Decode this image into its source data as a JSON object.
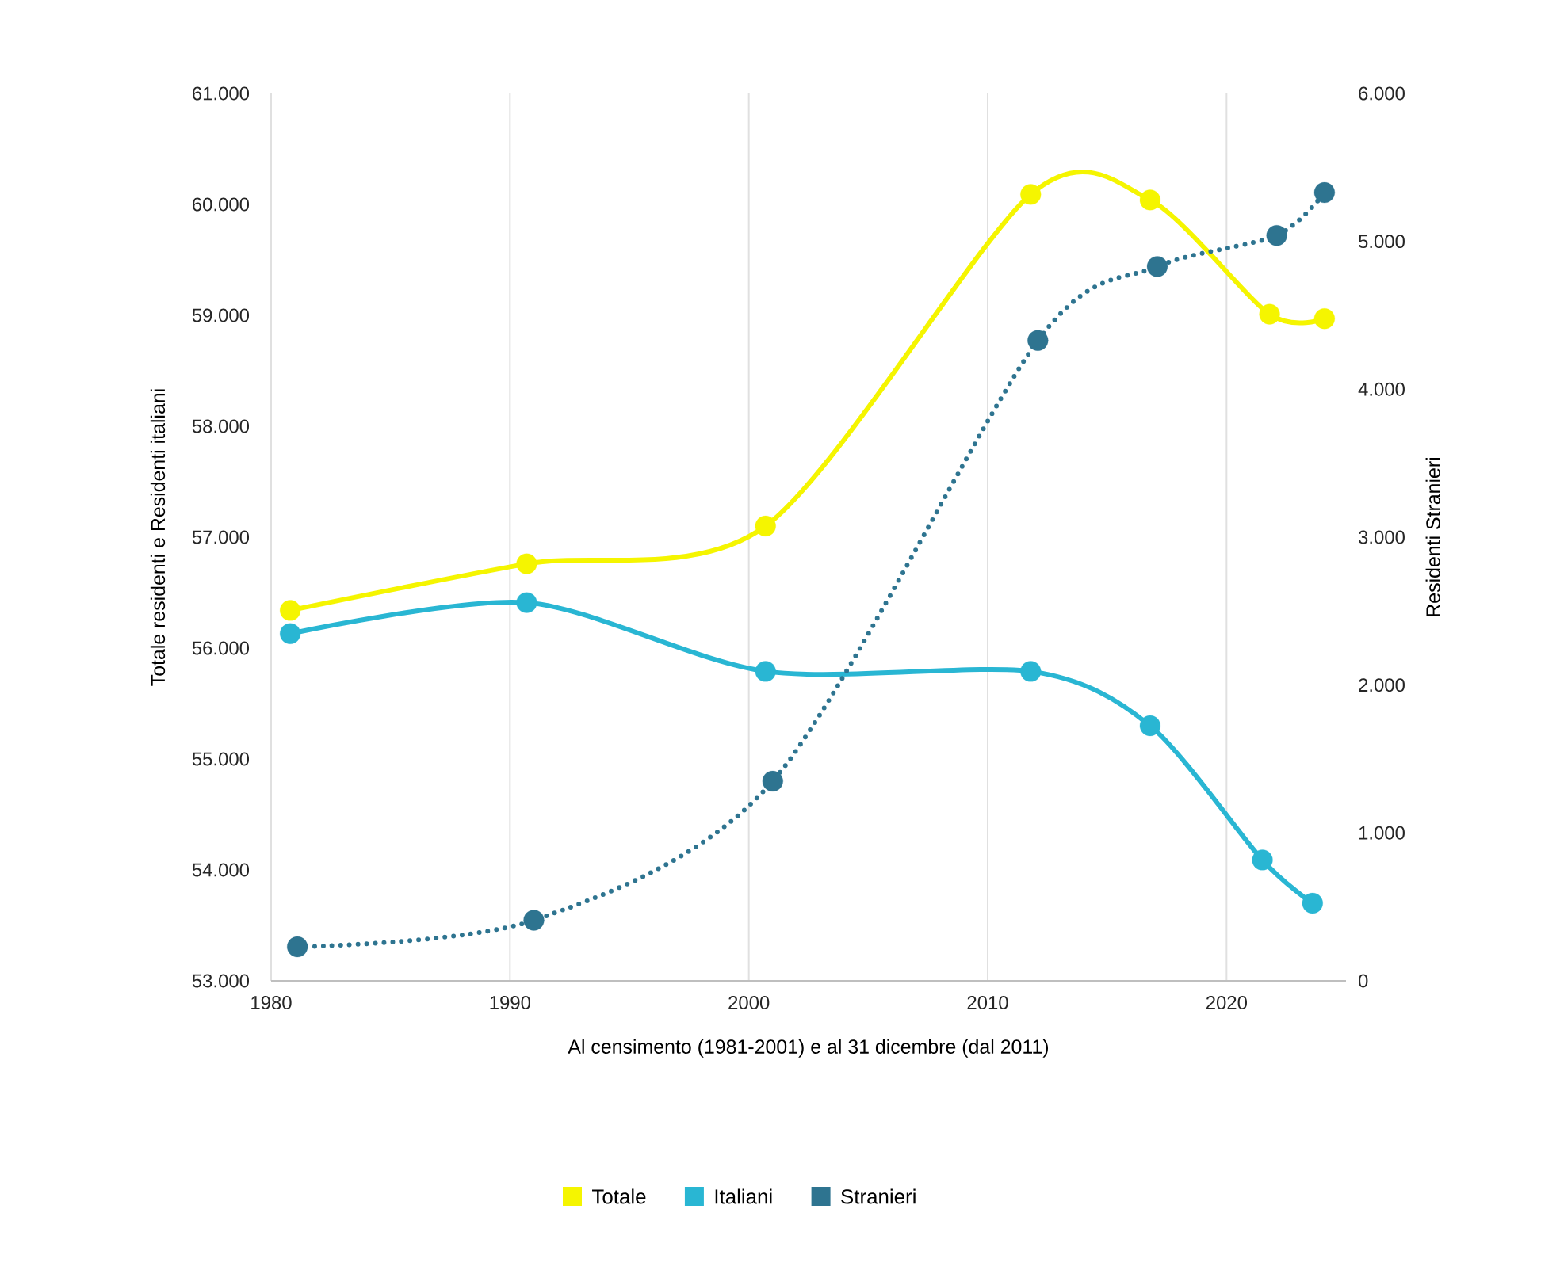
{
  "chart_data": {
    "type": "line",
    "xlabel": "Al censimento (1981-2001) e al 31 dicembre (dal 2011)",
    "ylabel": "Totale residenti e Residenti italiani",
    "y2label": "Residenti Stranieri",
    "xlim": [
      1980,
      2025
    ],
    "xticks": [
      1980,
      1990,
      2000,
      2010,
      2020
    ],
    "ylim": [
      53000,
      61000
    ],
    "yticks": [
      {
        "value": 53000,
        "label": "53.000"
      },
      {
        "value": 54000,
        "label": "54.000"
      },
      {
        "value": 55000,
        "label": "55.000"
      },
      {
        "value": 56000,
        "label": "56.000"
      },
      {
        "value": 57000,
        "label": "57.000"
      },
      {
        "value": 58000,
        "label": "58.000"
      },
      {
        "value": 59000,
        "label": "59.000"
      },
      {
        "value": 60000,
        "label": "60.000"
      },
      {
        "value": 61000,
        "label": "61.000"
      }
    ],
    "y2lim": [
      0,
      6000
    ],
    "y2ticks": [
      0,
      {
        "value": 1000,
        "label": "1.000"
      },
      {
        "value": 2000,
        "label": "2.000"
      },
      {
        "value": 3000,
        "label": "3.000"
      },
      {
        "value": 4000,
        "label": "4.000"
      },
      {
        "value": 5000,
        "label": "5.000"
      },
      {
        "value": 6000,
        "label": "6.000"
      }
    ],
    "grid": "x",
    "legend": "bottom",
    "marker": "circle",
    "series": [
      {
        "name": "Totale",
        "color": "#f5f500",
        "x": [
          1980.8,
          1990.7,
          2000.7,
          2011.8,
          2016.8,
          2021.8,
          2024.1
        ],
        "values": [
          56340,
          56760,
          57100,
          60090,
          60040,
          59010,
          58970
        ]
      },
      {
        "name": "Italiani",
        "color": "#29b6d3",
        "x": [
          1980.8,
          1990.7,
          2000.7,
          2011.8,
          2016.8,
          2021.5,
          2023.6
        ],
        "values": [
          56130,
          56410,
          55790,
          55790,
          55300,
          54090,
          53700
        ]
      },
      {
        "name": "Stranieri",
        "color": "#2e7490",
        "axis": "y2",
        "line_style": "dotted",
        "x": [
          1981.1,
          1991.0,
          2001.0,
          2012.1,
          2017.1,
          2022.1,
          2024.1
        ],
        "values": [
          230,
          410,
          1350,
          4330,
          4830,
          5040,
          5330
        ]
      }
    ]
  }
}
